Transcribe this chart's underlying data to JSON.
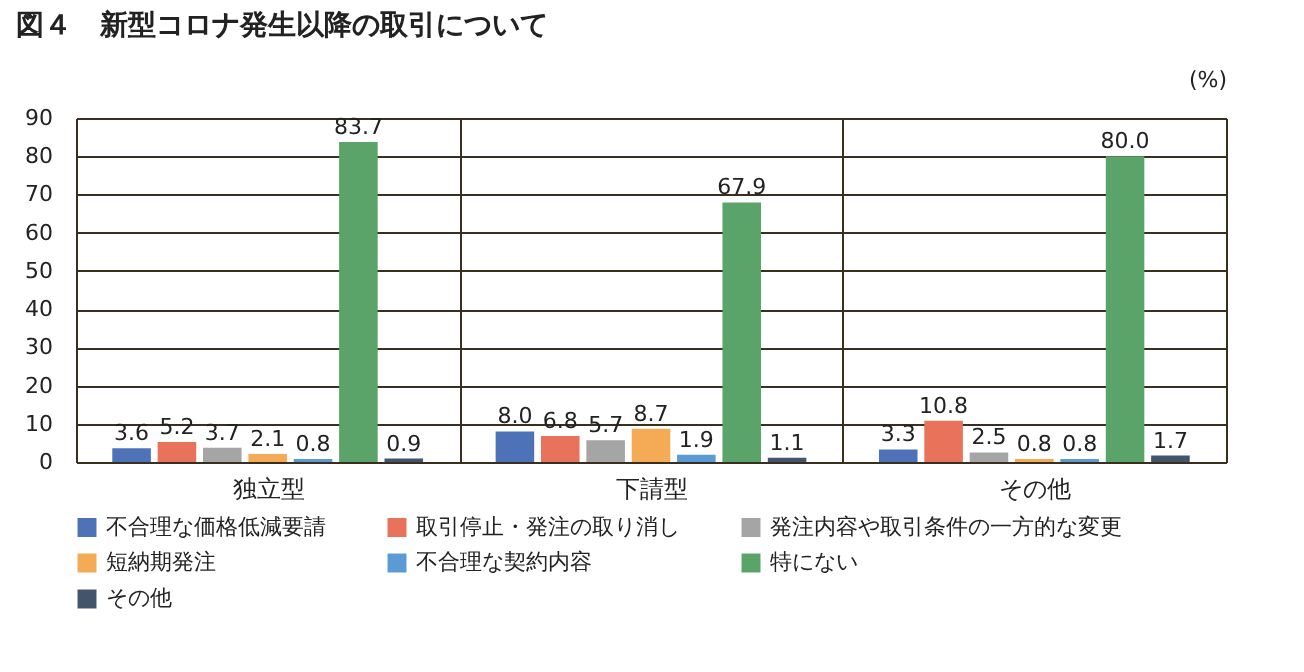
{
  "chart_data": {
    "type": "bar",
    "title": "図４　新型コロナ発生以降の取引について",
    "ylabel": "(%)",
    "categories": [
      "独立型",
      "下請型",
      "その他"
    ],
    "series": [
      {
        "name": "不合理な価格低減要請",
        "color": "#4e72b8",
        "values": [
          3.6,
          8.0,
          3.3
        ],
        "value_labels": [
          "3.6",
          "8.0",
          "3.3"
        ]
      },
      {
        "name": "取引停止・発注の取り消し",
        "color": "#e9735a",
        "values": [
          5.2,
          6.8,
          10.8
        ],
        "value_labels": [
          "5.2",
          "6.8",
          "10.8"
        ]
      },
      {
        "name": "発注内容や取引条件の一方的な変更",
        "color": "#a5a5a5",
        "values": [
          3.7,
          5.7,
          2.5
        ],
        "value_labels": [
          "3.7",
          "5.7",
          "2.5"
        ]
      },
      {
        "name": "短納期発注",
        "color": "#f5ab55",
        "values": [
          2.1,
          8.7,
          0.8
        ],
        "value_labels": [
          "2.1",
          "8.7",
          "0.8"
        ]
      },
      {
        "name": "不合理な契約内容",
        "color": "#5b9bd5",
        "values": [
          0.8,
          1.9,
          0.8
        ],
        "value_labels": [
          "0.8",
          "1.9",
          "0.8"
        ]
      },
      {
        "name": "特にない",
        "color": "#5aa469",
        "values": [
          83.7,
          67.9,
          80.0
        ],
        "value_labels": [
          "83.7",
          "67.9",
          "80.0"
        ]
      },
      {
        "name": "その他",
        "color": "#44546a",
        "values": [
          0.9,
          1.1,
          1.7
        ],
        "value_labels": [
          "0.9",
          "1.1",
          "1.7"
        ]
      }
    ],
    "ylim": [
      0,
      90
    ],
    "yticks": [
      0,
      10,
      20,
      30,
      40,
      50,
      60,
      70,
      80,
      90
    ],
    "grid": true,
    "legend": "bottom"
  }
}
